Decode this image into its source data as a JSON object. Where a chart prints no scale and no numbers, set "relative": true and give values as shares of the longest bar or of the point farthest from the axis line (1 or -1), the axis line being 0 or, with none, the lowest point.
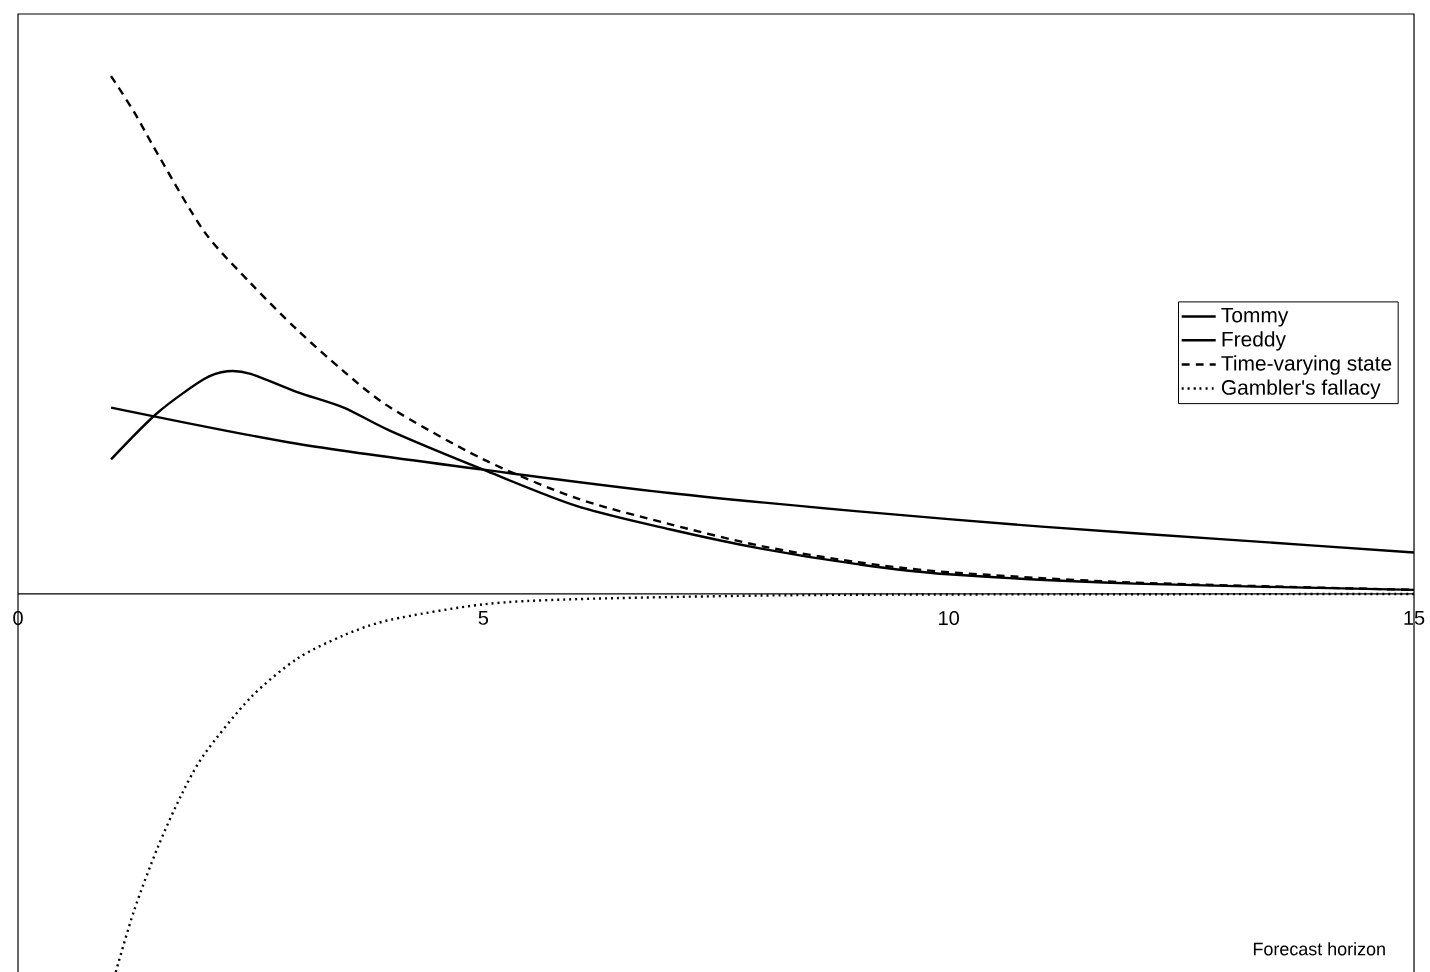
{
  "chart_data": {
    "type": "line",
    "relative": true,
    "xlabel": "Forecast horizon",
    "xlim": [
      0,
      15
    ],
    "xticks": [
      0,
      5,
      10,
      15
    ],
    "legend": "right",
    "tick_labels": "x",
    "series": [
      {
        "name": "Tommy",
        "color": "#000000",
        "line_style": "solid",
        "x": [
          1,
          3,
          5,
          7,
          9,
          11,
          13,
          15
        ],
        "values": [
          0.36,
          0.29,
          0.24,
          0.195,
          0.16,
          0.13,
          0.105,
          0.08
        ]
      },
      {
        "name": "Freddy",
        "color": "#000000",
        "line_style": "solid",
        "x": [
          1,
          1.5,
          2,
          2.25,
          2.5,
          3,
          3.5,
          4,
          5,
          6,
          7,
          8,
          9,
          10,
          12,
          15
        ],
        "values": [
          0.26,
          0.35,
          0.415,
          0.43,
          0.425,
          0.39,
          0.36,
          0.315,
          0.24,
          0.17,
          0.125,
          0.087,
          0.058,
          0.038,
          0.02,
          0.008
        ]
      },
      {
        "name": "Time-varying state",
        "color": "#000000",
        "line_style": "dashed",
        "x": [
          1,
          1.25,
          1.5,
          2,
          2.5,
          3,
          3.5,
          4,
          5,
          6,
          7,
          8,
          9,
          10,
          12,
          15
        ],
        "values": [
          1.0,
          0.93,
          0.85,
          0.7,
          0.6,
          0.51,
          0.43,
          0.36,
          0.26,
          0.185,
          0.135,
          0.092,
          0.062,
          0.042,
          0.022,
          0.008
        ]
      },
      {
        "name": "Gambler's fallacy",
        "color": "#000000",
        "line_style": "dotted",
        "x": [
          1.05,
          1.25,
          1.5,
          1.75,
          2,
          2.5,
          3,
          3.5,
          4,
          5,
          6,
          8,
          10,
          15
        ],
        "values": [
          -0.73,
          -0.61,
          -0.49,
          -0.39,
          -0.31,
          -0.2,
          -0.125,
          -0.08,
          -0.05,
          -0.02,
          -0.01,
          -0.003,
          -0.001,
          0
        ]
      }
    ]
  }
}
